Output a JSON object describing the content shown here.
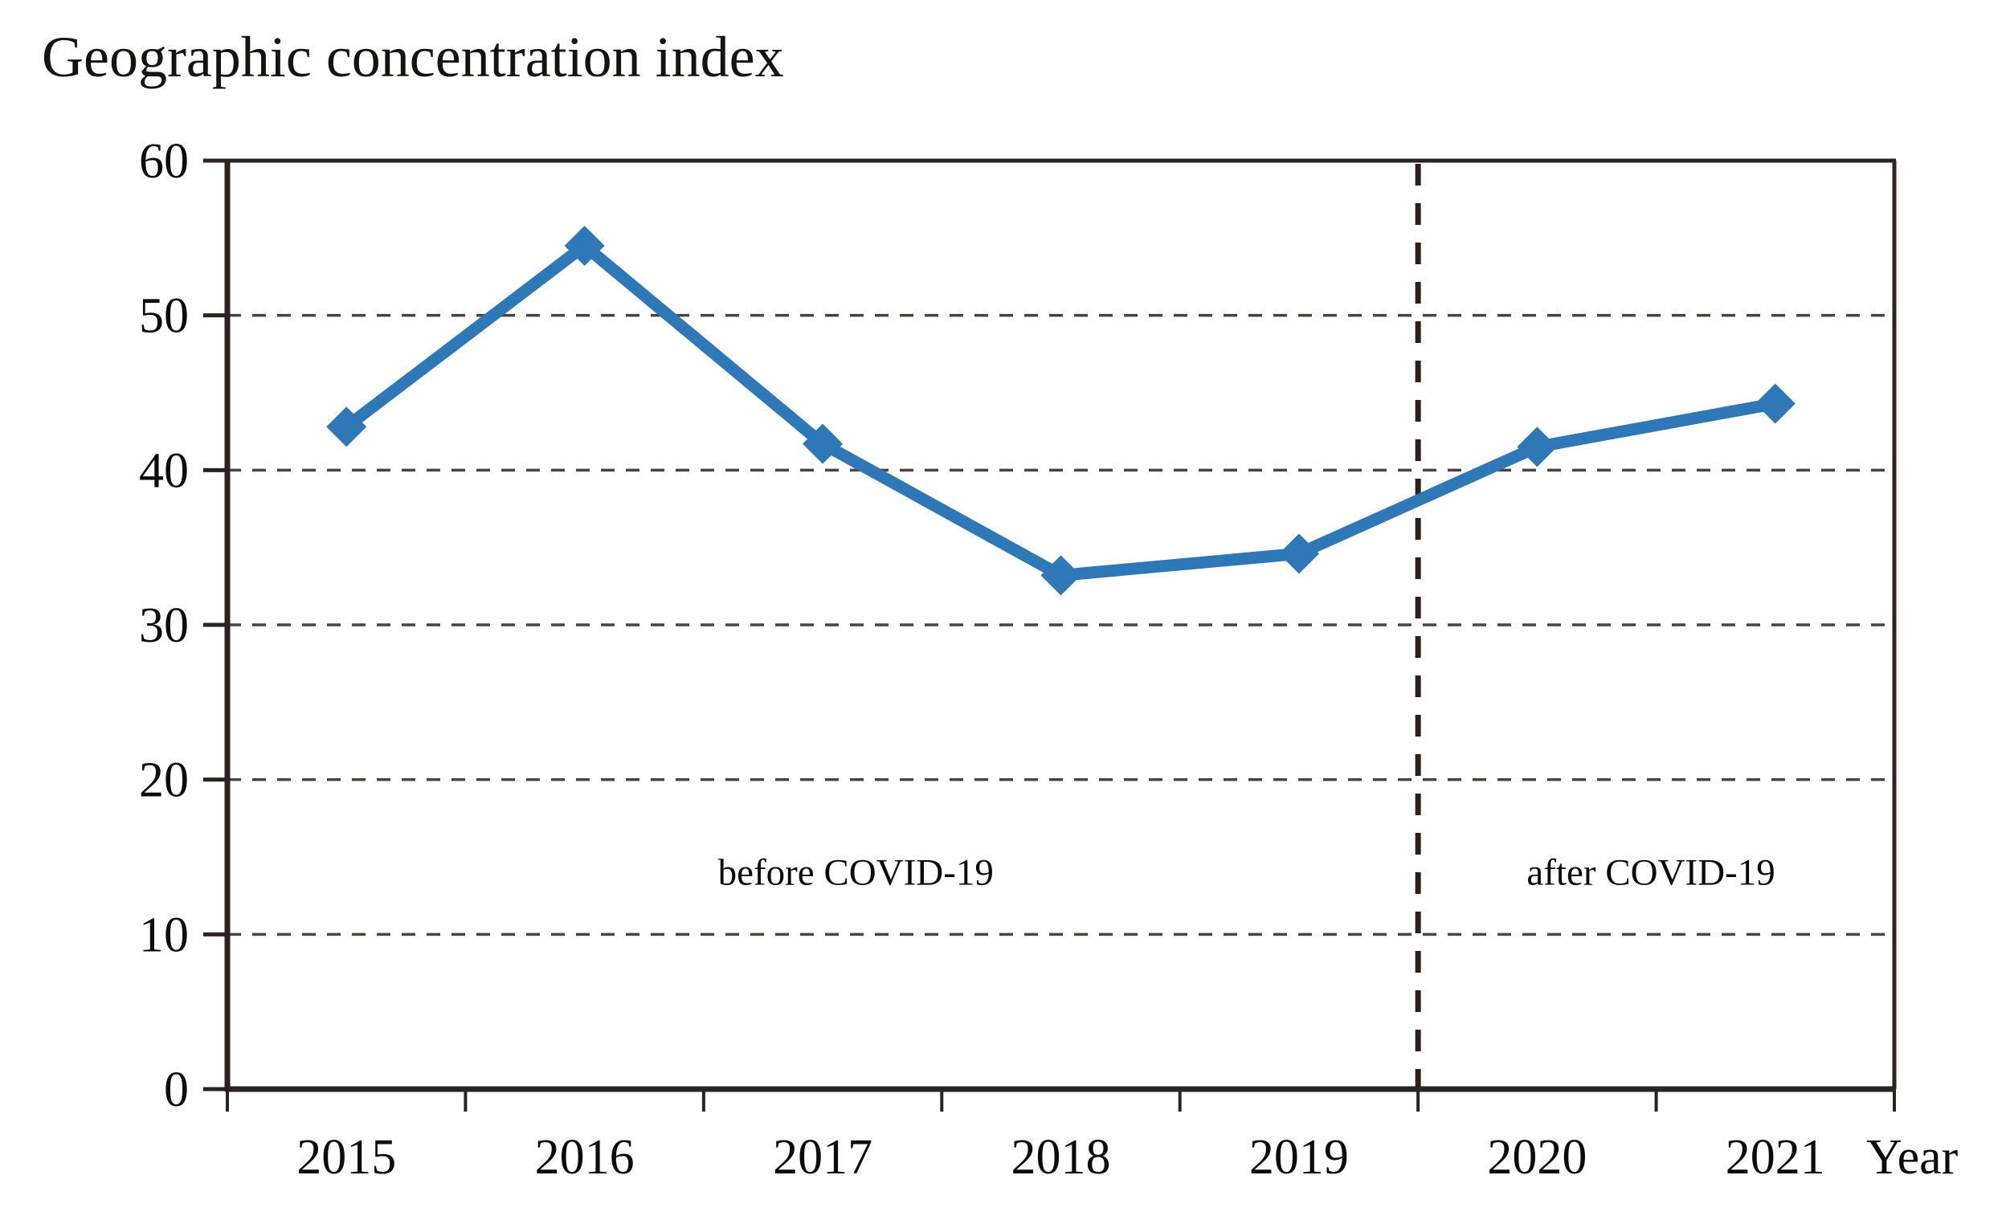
{
  "chart_data": {
    "type": "line",
    "title": "Geographic concentration index",
    "xlabel": "Year",
    "ylabel": "Geographic concentration index",
    "categories": [
      "2015",
      "2016",
      "2017",
      "2018",
      "2019",
      "2020",
      "2021"
    ],
    "series": [
      {
        "name": "Geographic concentration index",
        "values": [
          42.8,
          54.5,
          41.7,
          33.2,
          34.6,
          41.5,
          44.3
        ]
      }
    ],
    "ylim": [
      0,
      60
    ],
    "yticks": [
      0,
      10,
      20,
      30,
      40,
      50,
      60
    ],
    "grid": "horizontal-dashed",
    "legend": "none",
    "marker": "diamond",
    "divider": {
      "between": [
        "2019",
        "2020"
      ],
      "style": "vertical-dashed"
    },
    "annotations": [
      {
        "id": "before-covid",
        "text": "before COVID-19"
      },
      {
        "id": "after-covid",
        "text": "after COVID-19"
      }
    ],
    "colors": {
      "line": "#2E78B8",
      "axis": "#2B2320",
      "grid": "#4A4340",
      "divider": "#2B201C",
      "text": "#000000",
      "background": "#FFFFFF"
    }
  }
}
